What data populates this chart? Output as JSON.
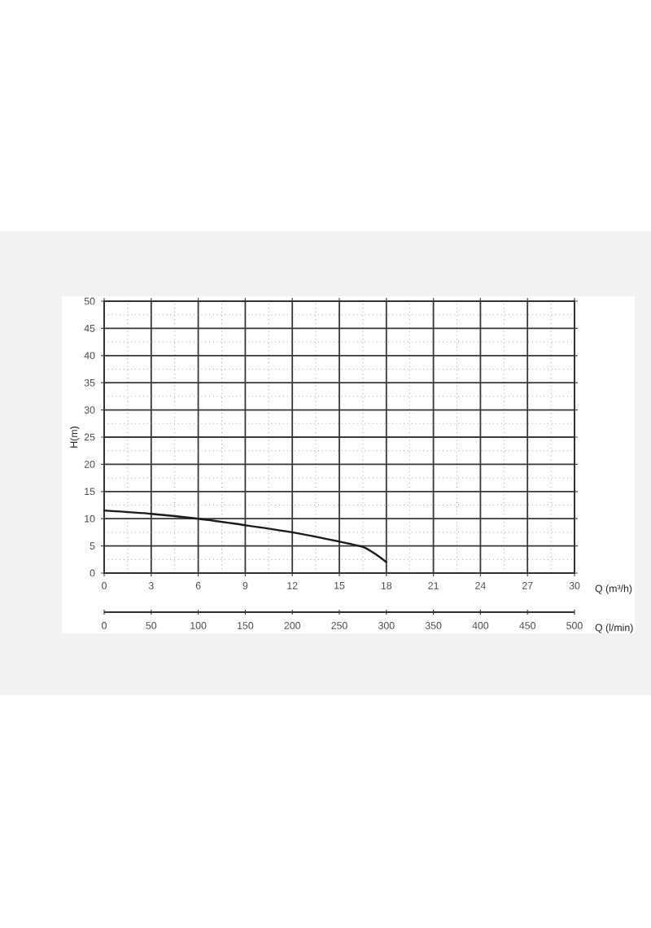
{
  "chart_data": {
    "type": "line",
    "xlabel": "Q (m³/h)",
    "ylabel": "H(m)",
    "x2label": "Q (l/min)",
    "x": [
      0,
      3,
      6,
      9,
      12,
      15,
      16.5,
      17.3,
      18
    ],
    "series": [
      {
        "color": "#1a1a1a",
        "values": [
          11.5,
          10.9,
          10,
          8.8,
          7.5,
          5.8,
          4.8,
          3.5,
          2
        ]
      }
    ],
    "xlim": [
      0,
      30
    ],
    "xticks": [
      0,
      3,
      6,
      9,
      12,
      15,
      18,
      21,
      24,
      27,
      30
    ],
    "ylim": [
      0,
      50
    ],
    "yticks": [
      0,
      5,
      10,
      15,
      20,
      25,
      30,
      35,
      40,
      45,
      50
    ],
    "x2lim": [
      0,
      500
    ],
    "x2ticks": [
      0,
      50,
      100,
      150,
      200,
      250,
      300,
      350,
      400,
      450,
      500
    ],
    "grid": true,
    "line_style": "solid"
  }
}
